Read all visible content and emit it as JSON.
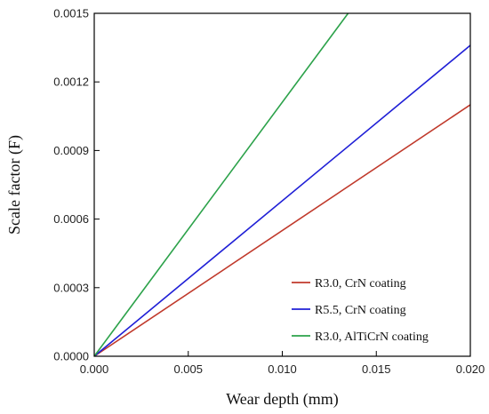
{
  "chart_data": {
    "type": "line",
    "xlabel": "Wear depth (mm)",
    "ylabel": "Scale factor (F)",
    "xlim": [
      0,
      0.02
    ],
    "ylim": [
      0,
      0.0015
    ],
    "x_ticks": [
      "0.000",
      "0.005",
      "0.010",
      "0.015",
      "0.020"
    ],
    "y_ticks": [
      "0.0000",
      "0.0003",
      "0.0006",
      "0.0009",
      "0.0012",
      "0.0015"
    ],
    "grid": false,
    "legend_position": "bottom-right",
    "series": [
      {
        "name": "R3.0, CrN coating",
        "color": "#c0392b",
        "x": [
          0,
          0.02
        ],
        "y": [
          0,
          0.0011
        ]
      },
      {
        "name": "R5.5, CrN coating",
        "color": "#1f1fd6",
        "x": [
          0,
          0.02
        ],
        "y": [
          0,
          0.00136
        ]
      },
      {
        "name": "R3.0, AlTiCrN coating",
        "color": "#2ca24a",
        "x": [
          0,
          0.0135
        ],
        "y": [
          0,
          0.0015
        ]
      }
    ]
  }
}
